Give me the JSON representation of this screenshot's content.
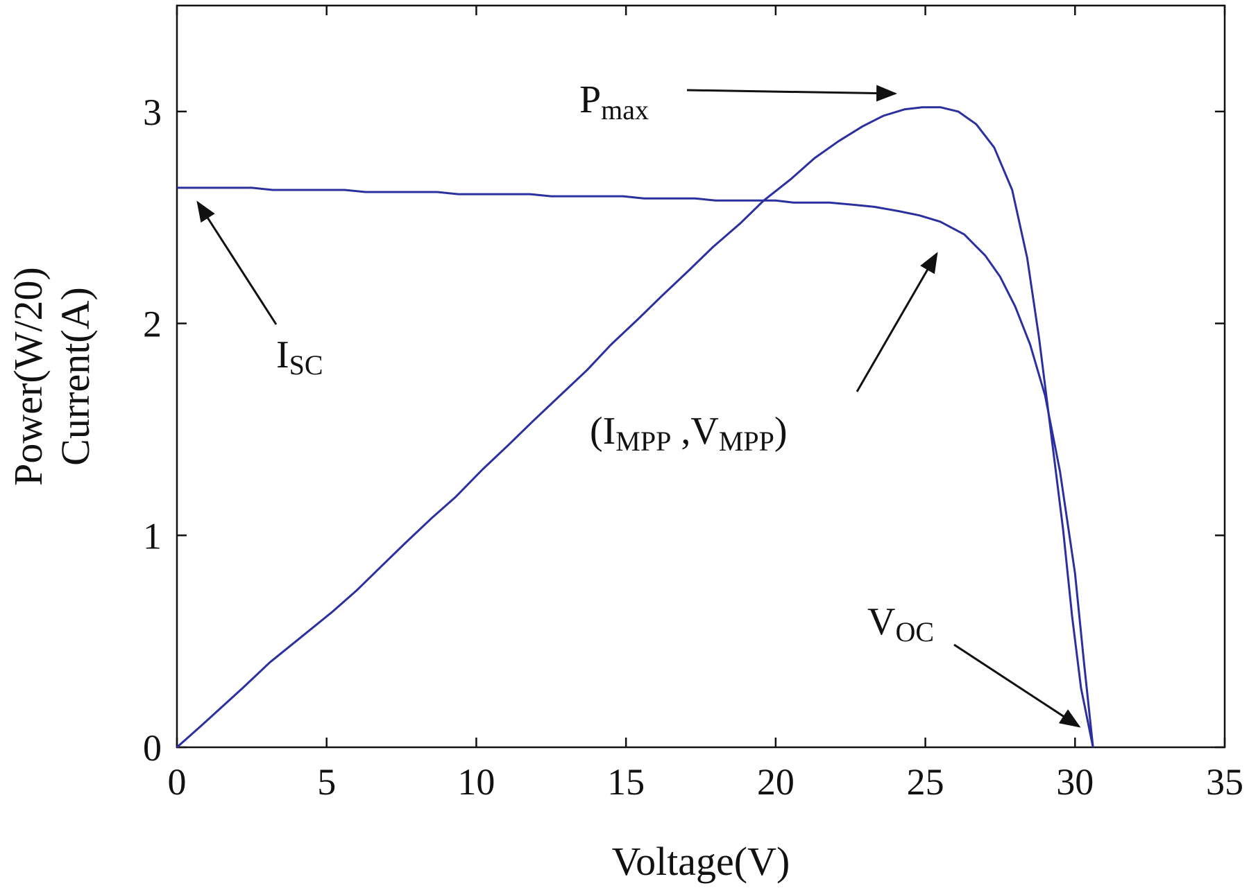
{
  "chart_data": {
    "type": "line",
    "xlabel": "Voltage(V)",
    "ylabel_lines": [
      "Power(W/20)",
      "Current(A)"
    ],
    "xlim": [
      0,
      35
    ],
    "ylim": [
      0,
      3.5
    ],
    "x_ticks": [
      0,
      5,
      10,
      15,
      20,
      25,
      30,
      35
    ],
    "y_ticks": [
      0,
      1,
      2,
      3
    ],
    "series_color": "#2b2fa0",
    "series": [
      {
        "points": [
          [
            0,
            2.64
          ],
          [
            2.5,
            2.64
          ],
          [
            3.2,
            2.63
          ],
          [
            5.6,
            2.63
          ],
          [
            6.3,
            2.62
          ],
          [
            8.7,
            2.62
          ],
          [
            9.4,
            2.61
          ],
          [
            11.8,
            2.61
          ],
          [
            12.5,
            2.6
          ],
          [
            14.9,
            2.6
          ],
          [
            15.6,
            2.59
          ],
          [
            17.3,
            2.59
          ],
          [
            18.0,
            2.58
          ],
          [
            20.0,
            2.58
          ],
          [
            20.6,
            2.57
          ],
          [
            21.8,
            2.57
          ],
          [
            22.6,
            2.56
          ],
          [
            23.3,
            2.55
          ],
          [
            24.1,
            2.53
          ],
          [
            24.8,
            2.51
          ],
          [
            25.5,
            2.48
          ],
          [
            26.3,
            2.42
          ],
          [
            27.0,
            2.32
          ],
          [
            27.5,
            2.22
          ],
          [
            28.0,
            2.08
          ],
          [
            28.5,
            1.9
          ],
          [
            29.0,
            1.66
          ],
          [
            29.5,
            1.3
          ],
          [
            30.0,
            0.82
          ],
          [
            30.3,
            0.4
          ],
          [
            30.6,
            0.0
          ]
        ]
      },
      {
        "points": [
          [
            0,
            0
          ],
          [
            0.8,
            0.1
          ],
          [
            1.5,
            0.19
          ],
          [
            2.2,
            0.28
          ],
          [
            3.1,
            0.4
          ],
          [
            4.5,
            0.56
          ],
          [
            5.2,
            0.64
          ],
          [
            6.0,
            0.74
          ],
          [
            6.8,
            0.85
          ],
          [
            7.6,
            0.96
          ],
          [
            8.5,
            1.08
          ],
          [
            9.3,
            1.18
          ],
          [
            10.2,
            1.31
          ],
          [
            11.1,
            1.43
          ],
          [
            11.9,
            1.54
          ],
          [
            12.8,
            1.66
          ],
          [
            13.7,
            1.78
          ],
          [
            14.5,
            1.9
          ],
          [
            15.4,
            2.02
          ],
          [
            16.2,
            2.13
          ],
          [
            17.1,
            2.25
          ],
          [
            17.9,
            2.36
          ],
          [
            18.8,
            2.47
          ],
          [
            19.6,
            2.58
          ],
          [
            20.5,
            2.68
          ],
          [
            21.3,
            2.78
          ],
          [
            22.1,
            2.86
          ],
          [
            22.9,
            2.93
          ],
          [
            23.6,
            2.98
          ],
          [
            24.3,
            3.01
          ],
          [
            24.9,
            3.02
          ],
          [
            25.5,
            3.02
          ],
          [
            26.1,
            3.0
          ],
          [
            26.7,
            2.94
          ],
          [
            27.3,
            2.83
          ],
          [
            27.9,
            2.63
          ],
          [
            28.4,
            2.31
          ],
          [
            28.8,
            1.93
          ],
          [
            29.2,
            1.48
          ],
          [
            29.6,
            1.03
          ],
          [
            29.9,
            0.62
          ],
          [
            30.2,
            0.28
          ],
          [
            30.6,
            0.0
          ]
        ]
      }
    ],
    "annotations": [
      {
        "main": "P",
        "sub": "max"
      },
      {
        "main": "I",
        "sub": "SC"
      },
      {
        "pre": "(I",
        "sub1": "MPP",
        "mid": " ,V",
        "sub2": "MPP",
        "post": ")"
      },
      {
        "main": "V",
        "sub": "OC"
      }
    ]
  }
}
